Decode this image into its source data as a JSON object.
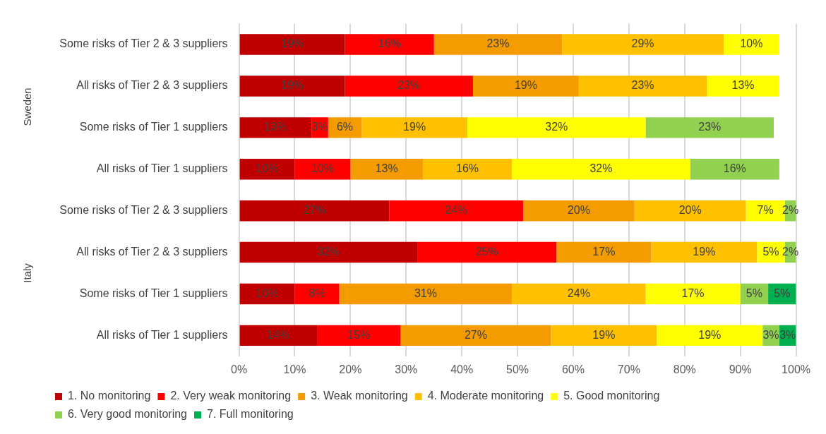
{
  "chart_data": {
    "type": "bar",
    "orientation": "horizontal",
    "stacked": true,
    "categories": [
      "Some risks of Tier 2 & 3 suppliers",
      "All risks of Tier 2 & 3 suppliers",
      "Some risks of Tier 1 suppliers",
      "All risks of Tier 1 suppliers",
      "Some risks of Tier 2 & 3 suppliers",
      "All risks of Tier 2 & 3 suppliers",
      "Some risks of Tier 1 suppliers",
      "All risks of Tier 1 suppliers"
    ],
    "annotations": [
      "Sweden",
      "Italy"
    ],
    "series": [
      {
        "name": "1. No monitoring",
        "color": "#c00000",
        "values": [
          19,
          19,
          13,
          10,
          27,
          32,
          10,
          14
        ],
        "value_labels": [
          "19%",
          "19%",
          "13%",
          "10%",
          "27%",
          "32%",
          "10%",
          "14%"
        ]
      },
      {
        "name": "2. Very weak monitoring",
        "color": "#ff0000",
        "values": [
          16,
          23,
          3,
          10,
          24,
          25,
          8,
          15
        ],
        "value_labels": [
          "16%",
          "23%",
          "3%",
          "10%",
          "24%",
          "25%",
          "8%",
          "15%"
        ]
      },
      {
        "name": "3. Weak monitoring",
        "color": "#f49b00",
        "values": [
          23,
          19,
          6,
          13,
          20,
          17,
          31,
          27
        ],
        "value_labels": [
          "23%",
          "19%",
          "6%",
          "13%",
          "20%",
          "17%",
          "31%",
          "27%"
        ]
      },
      {
        "name": "4. Moderate monitoring",
        "color": "#ffc000",
        "values": [
          29,
          23,
          19,
          16,
          20,
          19,
          24,
          19
        ],
        "value_labels": [
          "29%",
          "23%",
          "19%",
          "16%",
          "20%",
          "19%",
          "24%",
          "19%"
        ]
      },
      {
        "name": "5. Good monitoring",
        "color": "#ffff00",
        "values": [
          10,
          13,
          32,
          32,
          7,
          5,
          17,
          19
        ],
        "value_labels": [
          "10%",
          "13%",
          "32%",
          "32%",
          "7%",
          "5%",
          "17%",
          "19%"
        ]
      },
      {
        "name": "6. Very good monitoring",
        "color": "#92d050",
        "values": [
          null,
          null,
          23,
          16,
          2,
          2,
          5,
          3
        ],
        "value_labels": [
          null,
          null,
          "23%",
          "16%",
          "2%",
          "2%",
          "5%",
          "3%"
        ]
      },
      {
        "name": "7. Full monitoring",
        "color": "#00b050",
        "values": [
          null,
          null,
          null,
          null,
          null,
          null,
          5,
          3
        ],
        "value_labels": [
          null,
          null,
          null,
          null,
          null,
          null,
          "5%",
          "3%"
        ]
      }
    ],
    "xlim": [
      0,
      100
    ],
    "xticks": [
      {
        "value": 0,
        "label": "0%"
      },
      {
        "value": 10,
        "label": "10%"
      },
      {
        "value": 20,
        "label": "20%"
      },
      {
        "value": 30,
        "label": "30%"
      },
      {
        "value": 40,
        "label": "40%"
      },
      {
        "value": 50,
        "label": "50%"
      },
      {
        "value": 60,
        "label": "60%"
      },
      {
        "value": 70,
        "label": "70%"
      },
      {
        "value": 80,
        "label": "80%"
      },
      {
        "value": 90,
        "label": "90%"
      },
      {
        "value": 100,
        "label": "100%"
      }
    ],
    "grid": "x",
    "legend": "bottom"
  }
}
